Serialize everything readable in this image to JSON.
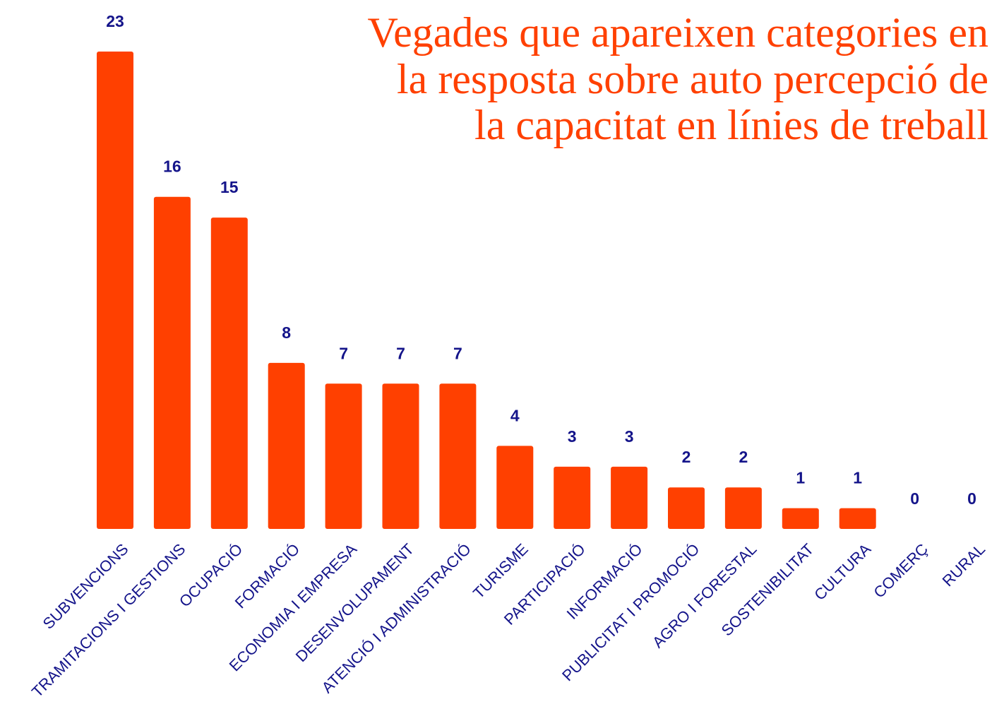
{
  "chart_data": {
    "type": "bar",
    "title": [
      "Vegades que apareixen categories en",
      "la resposta sobre auto percepció de",
      "la capacitat en línies de treball"
    ],
    "categories": [
      "SUBVENCIONS",
      "TRAMITACIONS I GESTIONS",
      "OCUPACIÓ",
      "FORMACIÓ",
      "ECONOMIA I EMPRESA",
      "DESENVOLUPAMENT",
      "ATENCIÓ I ADMINISTRACIÓ",
      "TURISME",
      "PARTICIPACIÓ",
      "INFORMACIÓ",
      "PUBLICITAT I PROMOCIÓ",
      "AGRO I FORESTAL",
      "SOSTENIBILITAT",
      "CULTURA",
      "COMERÇ",
      "RURAL"
    ],
    "values": [
      23,
      16,
      15,
      8,
      7,
      7,
      7,
      4,
      3,
      3,
      2,
      2,
      1,
      1,
      0,
      0
    ],
    "color": "#ff4000",
    "label_color": "#14148a"
  }
}
